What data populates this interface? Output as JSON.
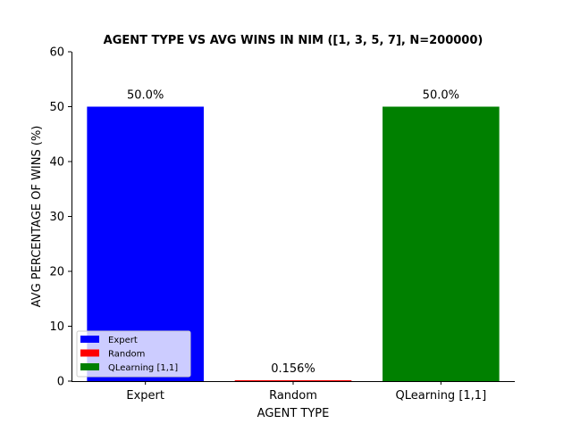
{
  "chart_data": {
    "type": "bar",
    "title": "AGENT TYPE VS AVG WINS IN NIM ([1, 3, 5, 7], N=200000)",
    "xlabel": "AGENT TYPE",
    "ylabel": "AVG PERCENTAGE OF WINS (%)",
    "categories": [
      "Expert",
      "Random",
      "QLearning [1,1]"
    ],
    "values": [
      50.0,
      0.156,
      50.0
    ],
    "data_labels": [
      "50.0%",
      "0.156%",
      "50.0%"
    ],
    "colors": [
      "#0000ff",
      "#ff0000",
      "#008000"
    ],
    "ylim": [
      0,
      60
    ],
    "yticks": [
      "0",
      "10",
      "20",
      "30",
      "40",
      "50",
      "60"
    ],
    "grid": false,
    "legend": {
      "placement": "lower-left",
      "entries": [
        "Expert",
        "Random",
        "QLearning [1,1]"
      ]
    }
  }
}
